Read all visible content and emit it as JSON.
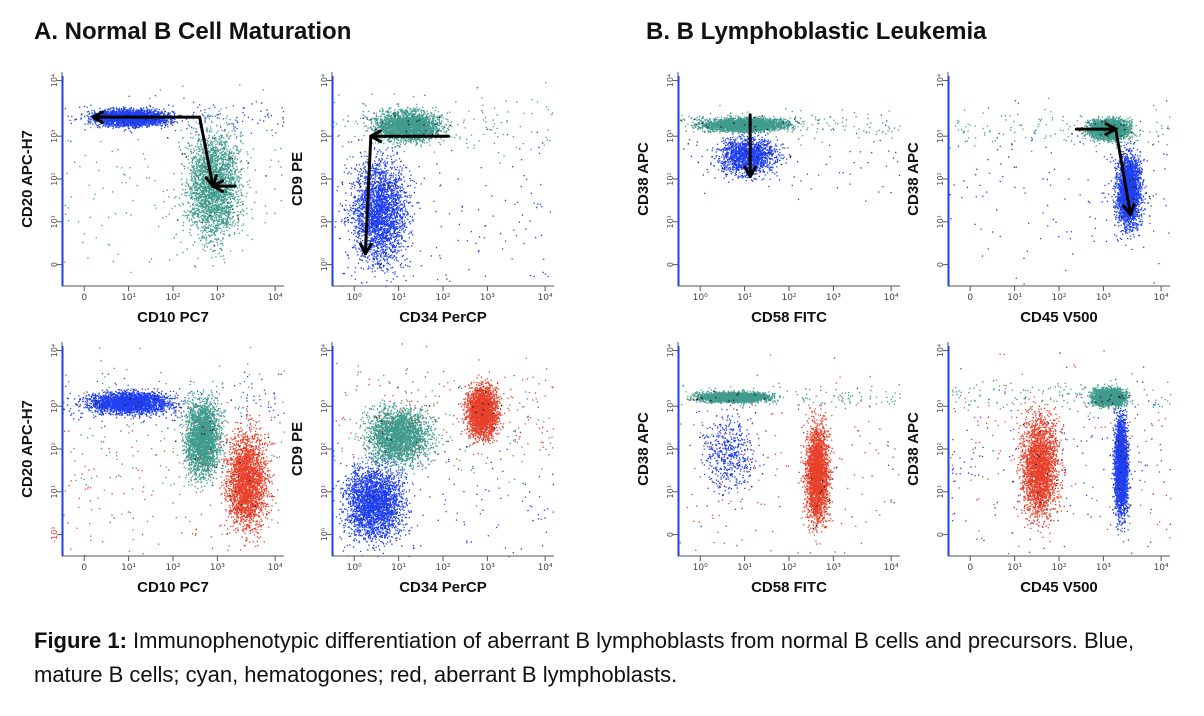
{
  "figure": {
    "panel_a_title": "A. Normal B Cell Maturation",
    "panel_b_title": "B. B Lymphoblastic Leukemia",
    "caption_label": "Figure 1:",
    "caption_text": " Immunophenotypic differentiation of aberrant B lymphoblasts from normal B cells and precursors. Blue, mature B cells; cyan, hematogones; red, aberrant B lymphoblasts."
  },
  "colors": {
    "mature_b": "#1f3ff0",
    "hematogones": "#3f9b8c",
    "blasts": "#e8402a",
    "other": "#222222"
  },
  "chart_data": [
    {
      "type": "scatter",
      "panel": "A",
      "xlabel": "CD10 PC7",
      "ylabel": "CD20 APC-H7",
      "xticks": [
        "0",
        "10¹",
        "10²",
        "10³",
        "10⁴"
      ],
      "yticks": [
        "0",
        "10¹",
        "10²",
        "10³",
        "10⁴"
      ],
      "xlim": [
        -1,
        4
      ],
      "ylim": [
        -0.5,
        4
      ],
      "clusters": [
        {
          "population": "mature_b",
          "x": [
            -0.6,
            1.7
          ],
          "y": [
            2.8,
            3.3
          ],
          "density": "high"
        },
        {
          "population": "hematogones",
          "x": [
            1.5,
            3.3
          ],
          "y": [
            0.0,
            3.3
          ],
          "density": "high"
        }
      ],
      "arrows": [
        {
          "from": [
            2.1,
            3.05
          ],
          "to": [
            -0.3,
            3.05
          ]
        },
        {
          "from": [
            2.1,
            3.05
          ],
          "to": [
            2.4,
            1.6
          ]
        },
        {
          "from": [
            2.9,
            1.6
          ],
          "to": [
            2.4,
            1.6
          ]
        }
      ]
    },
    {
      "type": "scatter",
      "panel": "A",
      "xlabel": "CD34 PerCP",
      "ylabel": "CD9 PE",
      "xticks": [
        "10⁰",
        "10¹",
        "10²",
        "10³",
        "10⁴"
      ],
      "yticks": [
        "10⁰",
        "10¹",
        "10²",
        "10³",
        "10⁴"
      ],
      "xlim": [
        0,
        4
      ],
      "ylim": [
        0,
        4
      ],
      "clusters": [
        {
          "population": "hematogones",
          "x": [
            0.5,
            2.2
          ],
          "y": [
            2.6,
            3.4
          ],
          "density": "high"
        },
        {
          "population": "mature_b",
          "x": [
            0.1,
            1.6
          ],
          "y": [
            0.0,
            2.8
          ],
          "density": "high"
        }
      ],
      "arrows": [
        {
          "from": [
            2.1,
            2.8
          ],
          "to": [
            0.7,
            2.8
          ]
        },
        {
          "from": [
            0.7,
            2.8
          ],
          "to": [
            0.6,
            0.6
          ]
        }
      ]
    },
    {
      "type": "scatter",
      "panel": "A",
      "xlabel": "CD58 FITC",
      "ylabel": "CD38 APC",
      "xticks": [
        "10⁰",
        "10¹",
        "10²",
        "10³",
        "10⁴"
      ],
      "yticks": [
        "0",
        "10¹",
        "10²",
        "10³",
        "10⁴"
      ],
      "xlim": [
        0,
        4
      ],
      "ylim": [
        -0.5,
        4
      ],
      "clusters": [
        {
          "population": "hematogones",
          "x": [
            0.1,
            2.3
          ],
          "y": [
            2.7,
            3.1
          ],
          "density": "high"
        },
        {
          "population": "mature_b",
          "x": [
            0.5,
            2.0
          ],
          "y": [
            1.7,
            2.8
          ],
          "density": "medium"
        }
      ],
      "arrows": [
        {
          "from": [
            1.3,
            3.1
          ],
          "to": [
            1.3,
            1.8
          ]
        }
      ]
    },
    {
      "type": "scatter",
      "panel": "A",
      "xlabel": "CD45 V500",
      "ylabel": "CD38 APC",
      "xticks": [
        "0",
        "10¹",
        "10²",
        "10³",
        "10⁴"
      ],
      "yticks": [
        "0",
        "10¹",
        "10²",
        "10³",
        "10⁴"
      ],
      "xlim": [
        -0.5,
        4
      ],
      "ylim": [
        -0.5,
        4
      ],
      "clusters": [
        {
          "population": "hematogones",
          "x": [
            2.2,
            3.3
          ],
          "y": [
            2.5,
            3.1
          ],
          "density": "high"
        },
        {
          "population": "mature_b",
          "x": [
            2.8,
            3.5
          ],
          "y": [
            0.4,
            2.6
          ],
          "density": "high"
        }
      ],
      "arrows": [
        {
          "from": [
            2.1,
            2.8
          ],
          "to": [
            2.9,
            2.8
          ]
        },
        {
          "from": [
            2.9,
            2.8
          ],
          "to": [
            3.2,
            1.0
          ]
        }
      ]
    },
    {
      "type": "scatter",
      "panel": "B",
      "xlabel": "CD10 PC7",
      "ylabel": "CD20 APC-H7",
      "xticks": [
        "0",
        "10¹",
        "10²",
        "10³",
        "10⁴"
      ],
      "yticks": [
        "-10¹",
        "10¹",
        "10²",
        "10³",
        "10⁴"
      ],
      "xlim": [
        -1,
        4
      ],
      "ylim": [
        -0.8,
        4
      ],
      "clusters": [
        {
          "population": "mature_b",
          "x": [
            -0.8,
            1.8
          ],
          "y": [
            2.3,
            3.0
          ],
          "density": "high"
        },
        {
          "population": "hematogones",
          "x": [
            1.6,
            2.7
          ],
          "y": [
            0.6,
            3.1
          ],
          "density": "high"
        },
        {
          "population": "blasts",
          "x": [
            2.5,
            3.8
          ],
          "y": [
            -0.7,
            2.4
          ],
          "density": "high"
        }
      ]
    },
    {
      "type": "scatter",
      "panel": "B",
      "xlabel": "CD34 PerCP",
      "ylabel": "CD9 PE",
      "xticks": [
        "10⁰",
        "10¹",
        "10²",
        "10³",
        "10⁴"
      ],
      "yticks": [
        "10⁰",
        "10¹",
        "10²",
        "10³",
        "10⁴"
      ],
      "xlim": [
        0,
        4
      ],
      "ylim": [
        0,
        4
      ],
      "clusters": [
        {
          "population": "mature_b",
          "x": [
            0.0,
            1.5
          ],
          "y": [
            0.0,
            2.0
          ],
          "density": "high"
        },
        {
          "population": "hematogones",
          "x": [
            0.4,
            2.0
          ],
          "y": [
            1.5,
            3.0
          ],
          "density": "high"
        },
        {
          "population": "blasts",
          "x": [
            2.3,
            3.1
          ],
          "y": [
            2.0,
            3.4
          ],
          "density": "high"
        }
      ]
    },
    {
      "type": "scatter",
      "panel": "B",
      "xlabel": "CD58 FITC",
      "ylabel": "CD38 APC",
      "xticks": [
        "10⁰",
        "10¹",
        "10²",
        "10³",
        "10⁴"
      ],
      "yticks": [
        "0",
        "10¹",
        "10²",
        "10³",
        "10⁴"
      ],
      "xlim": [
        0,
        4
      ],
      "ylim": [
        -0.5,
        4
      ],
      "clusters": [
        {
          "population": "hematogones",
          "x": [
            0.1,
            1.9
          ],
          "y": [
            2.7,
            3.0
          ],
          "density": "high"
        },
        {
          "population": "mature_b",
          "x": [
            0.2,
            1.6
          ],
          "y": [
            0.5,
            2.8
          ],
          "density": "low"
        },
        {
          "population": "blasts",
          "x": [
            2.2,
            2.8
          ],
          "y": [
            -0.2,
            2.7
          ],
          "density": "high"
        }
      ]
    },
    {
      "type": "scatter",
      "panel": "B",
      "xlabel": "CD45 V500",
      "ylabel": "CD38 APC",
      "xticks": [
        "0",
        "10¹",
        "10²",
        "10³",
        "10⁴"
      ],
      "yticks": [
        "0",
        "10¹",
        "10²",
        "10³",
        "10⁴"
      ],
      "xlim": [
        -0.5,
        4
      ],
      "ylim": [
        -0.5,
        4
      ],
      "clusters": [
        {
          "population": "blasts",
          "x": [
            0.8,
            1.9
          ],
          "y": [
            -0.2,
            2.9
          ],
          "density": "high"
        },
        {
          "population": "hematogones",
          "x": [
            2.3,
            3.2
          ],
          "y": [
            2.6,
            3.1
          ],
          "density": "high"
        },
        {
          "population": "mature_b",
          "x": [
            2.8,
            3.2
          ],
          "y": [
            -0.1,
            2.9
          ],
          "density": "high"
        }
      ]
    }
  ]
}
